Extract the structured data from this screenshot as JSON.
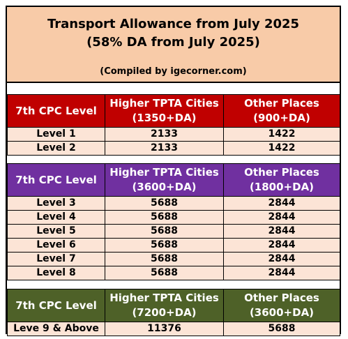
{
  "title": {
    "line1": "Transport Allowance from July 2025",
    "line2": "(58% DA from July 2025)",
    "credit": "(Compiled by igecorner.com)"
  },
  "colors": {
    "header_bg": "#f8cba8",
    "red": "#c00000",
    "purple": "#7030a0",
    "green": "#4e6128",
    "row_bg": "#fce4d6"
  },
  "sections": [
    {
      "header": {
        "col1": "7th CPC Level",
        "col2a": "Higher TPTA Cities",
        "col2b": "(1350+DA)",
        "col3a": "Other Places",
        "col3b": "(900+DA)"
      },
      "rows": [
        {
          "level": "Level 1",
          "higher": "2133",
          "other": "1422"
        },
        {
          "level": "Level 2",
          "higher": "2133",
          "other": "1422"
        }
      ]
    },
    {
      "header": {
        "col1": "7th CPC Level",
        "col2a": "Higher TPTA Cities",
        "col2b": "(3600+DA)",
        "col3a": "Other Places",
        "col3b": "(1800+DA)"
      },
      "rows": [
        {
          "level": "Level 3",
          "higher": "5688",
          "other": "2844"
        },
        {
          "level": "Level 4",
          "higher": "5688",
          "other": "2844"
        },
        {
          "level": "Level 5",
          "higher": "5688",
          "other": "2844"
        },
        {
          "level": "Level 6",
          "higher": "5688",
          "other": "2844"
        },
        {
          "level": "Level 7",
          "higher": "5688",
          "other": "2844"
        },
        {
          "level": "Level 8",
          "higher": "5688",
          "other": "2844"
        }
      ]
    },
    {
      "header": {
        "col1": "7th CPC Level",
        "col2a": "Higher TPTA Cities",
        "col2b": "(7200+DA)",
        "col3a": "Other Places",
        "col3b": "(3600+DA)"
      },
      "rows": [
        {
          "level": "Leve 9 & Above",
          "higher": "11376",
          "other": "5688"
        }
      ]
    }
  ]
}
